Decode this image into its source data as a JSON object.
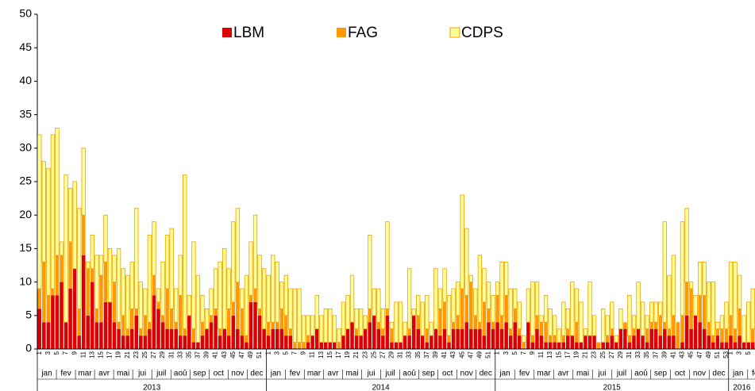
{
  "chart_data": {
    "type": "stacked-bar",
    "yticks": [
      0,
      5,
      10,
      15,
      20,
      25,
      30,
      35,
      40,
      45,
      50
    ],
    "ylim": [
      0,
      50
    ],
    "legend": "top-center",
    "months": [
      "jan",
      "fev",
      "mar",
      "avr",
      "mai",
      "jui",
      "juil",
      "aoû",
      "sep",
      "oct",
      "nov",
      "dec"
    ],
    "years": [
      "2013",
      "2014",
      "2015",
      "2016"
    ],
    "categories": [
      "1",
      null,
      "3",
      null,
      "5",
      null,
      "7",
      null,
      "9",
      null,
      "11",
      null,
      "13",
      null,
      "15",
      null,
      "17",
      null,
      "19",
      null,
      "21",
      null,
      "23",
      null,
      "25",
      null,
      "27",
      null,
      "29",
      null,
      "31",
      null,
      "33",
      null,
      "35",
      null,
      "37",
      null,
      "39",
      null,
      "41",
      null,
      "43",
      null,
      "45",
      null,
      "47",
      null,
      "49",
      null,
      "51",
      null,
      "1",
      null,
      "3",
      null,
      "5",
      null,
      "7",
      null,
      "9",
      null,
      "11",
      null,
      "13",
      null,
      "15",
      null,
      "17",
      null,
      "19",
      null,
      "21",
      null,
      "23",
      null,
      "25",
      null,
      "27",
      null,
      "29",
      null,
      "31",
      null,
      "33",
      null,
      "35",
      null,
      "37",
      null,
      "39",
      null,
      "41",
      null,
      "43",
      null,
      "45",
      null,
      "47",
      null,
      "49",
      null,
      "51",
      null,
      "1",
      null,
      "3",
      null,
      "5",
      null,
      "7",
      null,
      "9",
      null,
      "11",
      null,
      "13",
      null,
      "15",
      null,
      "17",
      null,
      "19",
      null,
      "21",
      null,
      "23",
      null,
      "25",
      null,
      "27",
      null,
      "29",
      null,
      "31",
      null,
      "33",
      null,
      "35",
      null,
      "37",
      null,
      "39",
      null,
      "41",
      null,
      "43",
      null,
      "45",
      null,
      "47",
      null,
      "49",
      null,
      "51",
      null,
      "53",
      "1",
      null,
      "3",
      null,
      "5",
      null
    ],
    "series": [
      {
        "name": "LBM",
        "color": "#dd0000",
        "values": [
          6,
          4,
          4,
          8,
          8,
          10,
          4,
          9,
          12,
          2,
          14,
          5,
          10,
          4,
          4,
          7,
          7,
          4,
          3,
          2,
          2,
          3,
          5,
          2,
          2,
          3,
          8,
          6,
          4,
          3,
          3,
          3,
          2,
          2,
          5,
          1,
          1,
          2,
          3,
          4,
          5,
          2,
          3,
          2,
          5,
          3,
          2,
          1,
          7,
          7,
          5,
          3,
          2,
          3,
          3,
          3,
          2,
          2,
          0,
          0,
          0,
          1,
          2,
          3,
          1,
          1,
          1,
          1,
          0,
          2,
          3,
          4,
          2,
          2,
          3,
          4,
          5,
          3,
          2,
          5,
          1,
          1,
          1,
          2,
          2,
          5,
          3,
          2,
          1,
          2,
          3,
          2,
          3,
          1,
          3,
          3,
          3,
          4,
          3,
          3,
          3,
          2,
          4,
          3,
          4,
          3,
          4,
          2,
          4,
          2,
          0,
          4,
          1,
          3,
          2,
          1,
          1,
          1,
          1,
          1,
          2,
          2,
          1,
          1,
          2,
          2,
          2,
          0,
          1,
          1,
          2,
          1,
          3,
          3,
          1,
          2,
          3,
          2,
          1,
          3,
          3,
          2,
          3,
          2,
          2,
          0,
          1,
          5,
          3,
          5,
          4,
          3,
          2,
          1,
          2,
          1,
          1,
          2,
          1,
          2,
          1,
          1,
          1
        ]
      },
      {
        "name": "FAG",
        "color": "#ff9900",
        "values": [
          3,
          9,
          4,
          1,
          6,
          4,
          0,
          7,
          0,
          4,
          6,
          7,
          2,
          2,
          7,
          6,
          0,
          6,
          1,
          3,
          1,
          3,
          1,
          1,
          3,
          1,
          3,
          1,
          1,
          6,
          3,
          1,
          6,
          1,
          0,
          2,
          0,
          2,
          0,
          1,
          1,
          1,
          0,
          4,
          2,
          7,
          4,
          1,
          1,
          2,
          1,
          0,
          2,
          1,
          1,
          3,
          3,
          1,
          1,
          1,
          1,
          1,
          0,
          0,
          0,
          0,
          0,
          0,
          1,
          0,
          0,
          0,
          1,
          0,
          0,
          2,
          0,
          1,
          1,
          1,
          2,
          0,
          0,
          0,
          1,
          0,
          2,
          0,
          2,
          0,
          0,
          4,
          4,
          1,
          1,
          2,
          6,
          4,
          7,
          2,
          1,
          5,
          2,
          1,
          4,
          2,
          4,
          1,
          2,
          1,
          1,
          0,
          1,
          2,
          2,
          3,
          1,
          1,
          0,
          1,
          1,
          0,
          3,
          0,
          0,
          0,
          0,
          1,
          0,
          1,
          1,
          0,
          0,
          1,
          1,
          1,
          0,
          0,
          2,
          1,
          1,
          3,
          1,
          1,
          3,
          4,
          4,
          5,
          6,
          0,
          4,
          5,
          2,
          1,
          1,
          2,
          2,
          3,
          2,
          4,
          0,
          0,
          2
        ]
      },
      {
        "name": "CDPS",
        "color": "#ffff99",
        "values": [
          23,
          15,
          19,
          23,
          19,
          2,
          22,
          8,
          13,
          15,
          10,
          1,
          5,
          8,
          3,
          7,
          8,
          4,
          11,
          7,
          8,
          7,
          15,
          7,
          4,
          13,
          8,
          2,
          8,
          8,
          12,
          5,
          6,
          23,
          3,
          13,
          10,
          4,
          3,
          4,
          6,
          10,
          12,
          6,
          12,
          11,
          3,
          9,
          8,
          11,
          8,
          9,
          7,
          10,
          9,
          4,
          6,
          6,
          8,
          8,
          4,
          3,
          3,
          5,
          4,
          5,
          5,
          4,
          2,
          5,
          5,
          7,
          3,
          4,
          2,
          11,
          4,
          5,
          3,
          13,
          1,
          6,
          6,
          2,
          9,
          1,
          3,
          5,
          5,
          2,
          9,
          3,
          5,
          6,
          5,
          5,
          14,
          10,
          1,
          4,
          10,
          5,
          4,
          4,
          2,
          8,
          5,
          6,
          3,
          4,
          1,
          5,
          8,
          5,
          1,
          4,
          4,
          3,
          2,
          5,
          3,
          8,
          5,
          6,
          1,
          8,
          3,
          0,
          5,
          3,
          4,
          1,
          3,
          0,
          6,
          2,
          7,
          5,
          2,
          3,
          3,
          2,
          15,
          8,
          9,
          0,
          14,
          11,
          1,
          3,
          5,
          5,
          6,
          8,
          1,
          2,
          4,
          8,
          10,
          5,
          4,
          6,
          6
        ]
      }
    ]
  }
}
